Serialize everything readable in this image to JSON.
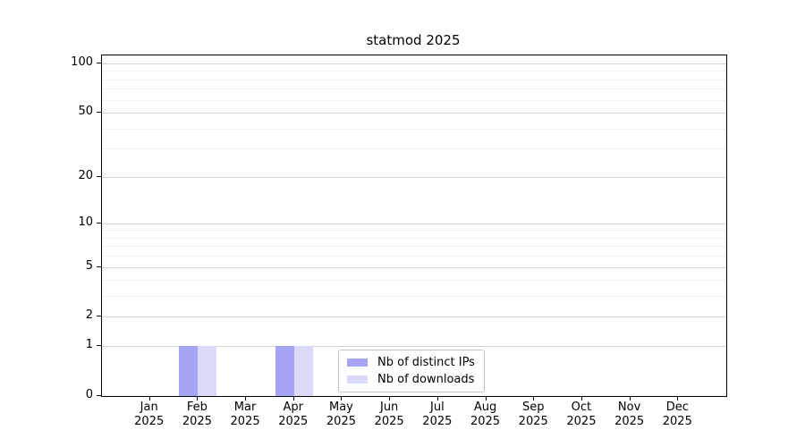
{
  "chart": {
    "title": "statmod 2025"
  },
  "legend": {
    "items": [
      {
        "label": "Nb of distinct IPs",
        "color_key": "ips"
      },
      {
        "label": "Nb of downloads",
        "color_key": "downloads"
      }
    ]
  },
  "colors": {
    "ips": "#a5a5f3",
    "downloads": "#dadaf8",
    "axis": "#000000",
    "text": "#000000",
    "grid_major": "#d6d6d6",
    "grid_minor": "#f0f0f0",
    "legend_border": "#c3c3c3",
    "background": "#ffffff"
  },
  "chart_data": {
    "type": "bar",
    "title": "statmod 2025",
    "categories": [
      "Jan 2025",
      "Feb 2025",
      "Mar 2025",
      "Apr 2025",
      "May 2025",
      "Jun 2025",
      "Jul 2025",
      "Aug 2025",
      "Sep 2025",
      "Oct 2025",
      "Nov 2025",
      "Dec 2025"
    ],
    "x_tick_months": [
      "Jan",
      "Feb",
      "Mar",
      "Apr",
      "May",
      "Jun",
      "Jul",
      "Aug",
      "Sep",
      "Oct",
      "Nov",
      "Dec"
    ],
    "x_tick_years": [
      "2025",
      "2025",
      "2025",
      "2025",
      "2025",
      "2025",
      "2025",
      "2025",
      "2025",
      "2025",
      "2025",
      "2025"
    ],
    "series": [
      {
        "name": "Nb of distinct IPs",
        "color_key": "ips",
        "values": [
          0,
          1,
          0,
          1,
          0,
          0,
          0,
          0,
          0,
          0,
          0,
          0
        ]
      },
      {
        "name": "Nb of downloads",
        "color_key": "downloads",
        "values": [
          0,
          1,
          0,
          1,
          0,
          0,
          0,
          0,
          0,
          0,
          0,
          0
        ]
      }
    ],
    "xlabel": "",
    "ylabel": "",
    "y_ticks": [
      0,
      1,
      2,
      5,
      10,
      20,
      50,
      100
    ],
    "y_minor_gridlines": [
      3,
      4,
      6,
      7,
      8,
      9,
      30,
      40,
      60,
      70,
      80,
      90
    ],
    "y_scale": "log1p",
    "ylim": [
      0,
      112
    ],
    "grid": true,
    "legend_position": "inside-bottom-center"
  }
}
